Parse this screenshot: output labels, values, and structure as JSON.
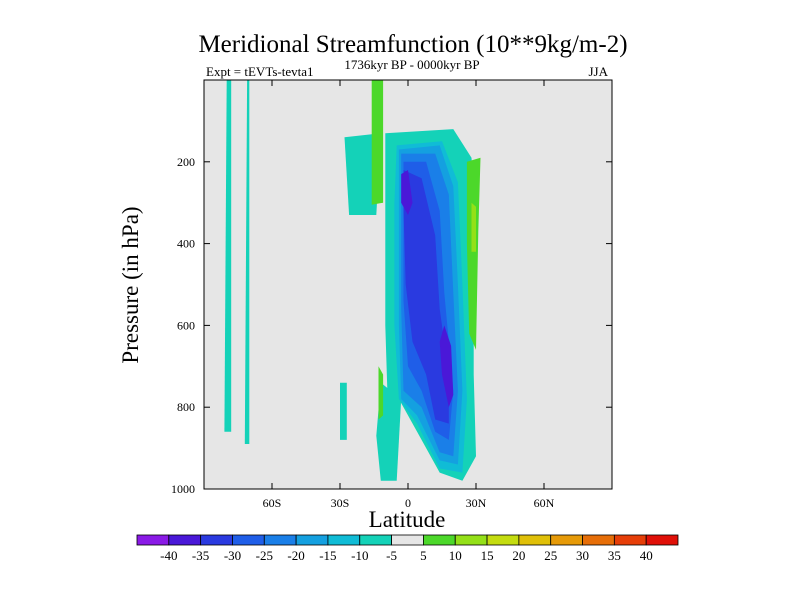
{
  "chart_data": {
    "type": "heatmap",
    "title": "Meridional Streamfunction (10**9kg/m-2)",
    "subtitle_left": "Expt = tEVTs-tevta1",
    "subtitle_center": "1736kyr BP - 0000kyr BP",
    "subtitle_right": "JJA",
    "xlabel": "Latitude",
    "ylabel": "Pressure (in hPa)",
    "xlim": [
      -90,
      90
    ],
    "ylim": [
      1000,
      0
    ],
    "x_ticks": [
      {
        "value": -60,
        "label": "60S"
      },
      {
        "value": -30,
        "label": "30S"
      },
      {
        "value": 0,
        "label": "0"
      },
      {
        "value": 30,
        "label": "30N"
      },
      {
        "value": 60,
        "label": "60N"
      }
    ],
    "y_ticks": [
      {
        "value": 200,
        "label": "200"
      },
      {
        "value": 400,
        "label": "400"
      },
      {
        "value": 600,
        "label": "600"
      },
      {
        "value": 800,
        "label": "800"
      },
      {
        "value": 1000,
        "label": "1000"
      }
    ],
    "colorbar": {
      "labels": [
        "-40",
        "-35",
        "-30",
        "-25",
        "-20",
        "-15",
        "-10",
        "-5",
        "5",
        "10",
        "15",
        "20",
        "25",
        "30",
        "35",
        "40"
      ],
      "colors": [
        "#8a1ae6",
        "#4a18d8",
        "#2a3ae0",
        "#1f5ee8",
        "#1a7fe8",
        "#14a0e0",
        "#10bcd6",
        "#14d2b8",
        "#e6e6e6",
        "#4cd82a",
        "#94e018",
        "#c4dc10",
        "#e0c008",
        "#e69a08",
        "#e66e08",
        "#e63e08",
        "#e01008"
      ]
    },
    "regions": [
      {
        "value": -7,
        "color": "#14d2b8",
        "polygon": [
          [
            -80,
            0
          ],
          [
            -78,
            0
          ],
          [
            -78,
            860
          ],
          [
            -81,
            860
          ]
        ]
      },
      {
        "value": -7,
        "color": "#14d2b8",
        "polygon": [
          [
            -71,
            0
          ],
          [
            -70,
            0
          ],
          [
            -70,
            890
          ],
          [
            -72,
            890
          ]
        ]
      },
      {
        "value": -7,
        "color": "#14d2b8",
        "polygon": [
          [
            -28,
            140
          ],
          [
            -12,
            130
          ],
          [
            -14,
            330
          ],
          [
            -26,
            330
          ]
        ]
      },
      {
        "value": -7,
        "color": "#14d2b8",
        "polygon": [
          [
            -30,
            740
          ],
          [
            -27,
            740
          ],
          [
            -27,
            880
          ],
          [
            -30,
            880
          ]
        ]
      },
      {
        "value": -7,
        "color": "#14d2b8",
        "polygon": [
          [
            -12,
            740
          ],
          [
            -3,
            780
          ],
          [
            -5,
            980
          ],
          [
            -12,
            980
          ],
          [
            -14,
            870
          ]
        ]
      },
      {
        "value": -7,
        "color": "#14d2b8",
        "polygon": [
          [
            -10,
            130
          ],
          [
            20,
            120
          ],
          [
            28,
            190
          ],
          [
            30,
            360
          ],
          [
            29,
            520
          ],
          [
            29,
            720
          ],
          [
            30,
            920
          ],
          [
            24,
            980
          ],
          [
            14,
            960
          ],
          [
            4,
            860
          ],
          [
            -4,
            780
          ],
          [
            -9,
            780
          ],
          [
            -10,
            600
          ],
          [
            -10,
            300
          ]
        ]
      },
      {
        "value": -12,
        "color": "#10bcd6",
        "polygon": [
          [
            -5,
            160
          ],
          [
            15,
            150
          ],
          [
            22,
            250
          ],
          [
            24,
            500
          ],
          [
            26,
            780
          ],
          [
            24,
            960
          ],
          [
            14,
            950
          ],
          [
            4,
            840
          ],
          [
            -4,
            780
          ],
          [
            -6,
            600
          ],
          [
            -6,
            300
          ]
        ]
      },
      {
        "value": -17,
        "color": "#14a0e0",
        "polygon": [
          [
            -4,
            170
          ],
          [
            14,
            160
          ],
          [
            20,
            260
          ],
          [
            22,
            500
          ],
          [
            24,
            760
          ],
          [
            22,
            940
          ],
          [
            14,
            930
          ],
          [
            4,
            820
          ],
          [
            -3,
            780
          ],
          [
            -4,
            600
          ],
          [
            -4,
            300
          ]
        ]
      },
      {
        "value": -22,
        "color": "#1a7fe8",
        "polygon": [
          [
            -3,
            180
          ],
          [
            12,
            180
          ],
          [
            18,
            280
          ],
          [
            20,
            520
          ],
          [
            22,
            760
          ],
          [
            20,
            920
          ],
          [
            14,
            910
          ],
          [
            6,
            800
          ],
          [
            -2,
            760
          ],
          [
            -3,
            560
          ],
          [
            -3,
            300
          ]
        ]
      },
      {
        "value": -27,
        "color": "#1f5ee8",
        "polygon": [
          [
            -2,
            200
          ],
          [
            8,
            200
          ],
          [
            14,
            320
          ],
          [
            16,
            520
          ],
          [
            20,
            760
          ],
          [
            18,
            880
          ],
          [
            12,
            860
          ],
          [
            6,
            760
          ],
          [
            0,
            700
          ],
          [
            -2,
            540
          ],
          [
            -2,
            300
          ]
        ]
      },
      {
        "value": -32,
        "color": "#2a3ae0",
        "polygon": [
          [
            -2,
            220
          ],
          [
            6,
            240
          ],
          [
            12,
            380
          ],
          [
            14,
            560
          ],
          [
            18,
            720
          ],
          [
            18,
            840
          ],
          [
            12,
            830
          ],
          [
            8,
            720
          ],
          [
            2,
            640
          ],
          [
            -1,
            500
          ],
          [
            -2,
            320
          ]
        ]
      },
      {
        "value": -37,
        "color": "#4a18d8",
        "polygon": [
          [
            -3,
            230
          ],
          [
            0,
            220
          ],
          [
            2,
            300
          ],
          [
            0,
            330
          ],
          [
            -3,
            300
          ]
        ]
      },
      {
        "value": -37,
        "color": "#4a18d8",
        "polygon": [
          [
            16,
            600
          ],
          [
            19,
            650
          ],
          [
            20,
            770
          ],
          [
            18,
            800
          ],
          [
            15,
            720
          ],
          [
            14,
            640
          ]
        ]
      },
      {
        "value": 7,
        "color": "#4cd82a",
        "polygon": [
          [
            -16,
            0
          ],
          [
            -11,
            0
          ],
          [
            -11,
            300
          ],
          [
            -16,
            305
          ]
        ]
      },
      {
        "value": 7,
        "color": "#4cd82a",
        "polygon": [
          [
            -13,
            700
          ],
          [
            -11,
            720
          ],
          [
            -11,
            820
          ],
          [
            -13,
            830
          ]
        ]
      },
      {
        "value": 7,
        "color": "#4cd82a",
        "polygon": [
          [
            26,
            200
          ],
          [
            32,
            190
          ],
          [
            31,
            370
          ],
          [
            30,
            660
          ],
          [
            27,
            620
          ],
          [
            26,
            400
          ]
        ]
      },
      {
        "value": 12,
        "color": "#94e018",
        "polygon": [
          [
            28,
            300
          ],
          [
            30,
            310
          ],
          [
            30,
            420
          ],
          [
            28,
            420
          ]
        ]
      }
    ]
  }
}
